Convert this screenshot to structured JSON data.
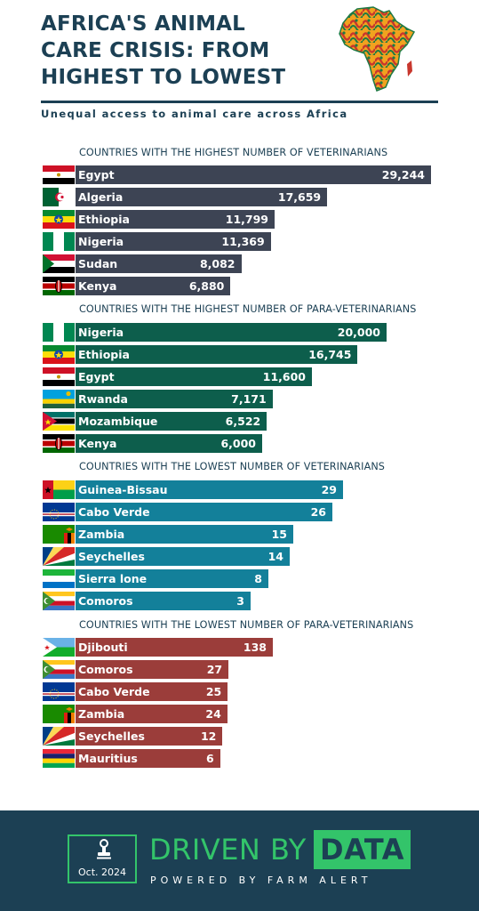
{
  "title_lines": [
    "AFRICA'S ANIMAL",
    "CARE CRISIS: FROM",
    "HIGHEST TO LOWEST"
  ],
  "subtitle": "Unequal access to animal care across Africa",
  "chart_data": [
    {
      "type": "bar",
      "title": "COUNTRIES WITH THE HIGHEST NUMBER OF VETERINARIANS",
      "color": "#3d4454",
      "categories": [
        "Egypt",
        "Algeria",
        "Ethiopia",
        "Nigeria",
        "Sudan",
        "Kenya"
      ],
      "values": [
        29244,
        17659,
        11799,
        11369,
        8082,
        6880
      ],
      "labels": [
        "29,244",
        "17,659",
        "11,799",
        "11,369",
        "8,082",
        "6,880"
      ],
      "flags": [
        "egypt-flag-icon",
        "algeria-flag-icon",
        "ethiopia-flag-icon",
        "nigeria-flag-icon",
        "sudan-flag-icon",
        "kenya-flag-icon"
      ]
    },
    {
      "type": "bar",
      "title": "COUNTRIES WITH THE HIGHEST NUMBER OF PARA-VETERINARIANS",
      "color": "#0d5e4c",
      "categories": [
        "Nigeria",
        "Ethiopia",
        "Egypt",
        "Rwanda",
        "Mozambique",
        "Kenya"
      ],
      "values": [
        20000,
        16745,
        11600,
        7171,
        6522,
        6000
      ],
      "labels": [
        "20,000",
        "16,745",
        "11,600",
        "7,171",
        "6,522",
        "6,000"
      ],
      "flags": [
        "nigeria-flag-icon",
        "ethiopia-flag-icon",
        "egypt-flag-icon",
        "rwanda-flag-icon",
        "mozambique-flag-icon",
        "kenya-flag-icon"
      ]
    },
    {
      "type": "bar",
      "title": "COUNTRIES WITH THE LOWEST NUMBER OF VETERINARIANS",
      "color": "#13809a",
      "categories": [
        "Guinea-Bissau",
        "Cabo Verde",
        "Zambia",
        "Seychelles",
        "Sierra lone",
        "Comoros"
      ],
      "values": [
        29,
        26,
        15,
        14,
        8,
        3
      ],
      "labels": [
        "29",
        "26",
        "15",
        "14",
        "8",
        "3"
      ],
      "flags": [
        "guinea-bissau-flag-icon",
        "cabo-verde-flag-icon",
        "zambia-flag-icon",
        "seychelles-flag-icon",
        "sierra-leone-flag-icon",
        "comoros-flag-icon"
      ]
    },
    {
      "type": "bar",
      "title": "COUNTRIES WITH THE LOWEST NUMBER OF PARA-VETERINARIANS",
      "color": "#9b3d3a",
      "categories": [
        "Djibouti",
        "Comoros",
        "Cabo Verde",
        "Zambia",
        "Seychelles",
        "Mauritius"
      ],
      "values": [
        138,
        27,
        25,
        24,
        12,
        6
      ],
      "labels": [
        "138",
        "27",
        "25",
        "24",
        "12",
        "6"
      ],
      "flags": [
        "djibouti-flag-icon",
        "comoros-flag-icon",
        "cabo-verde-flag-icon",
        "zambia-flag-icon",
        "seychelles-flag-icon",
        "mauritius-flag-icon"
      ]
    }
  ],
  "footer": {
    "date": "Oct. 2024",
    "brand_left": "DRIVEN BY",
    "brand_right": "DATA",
    "powered_by": "POWERED BY FARM ALERT",
    "icon": "stamp-icon",
    "accent": "#33c46a",
    "background": "#1c4054"
  },
  "logo_icon": "africa-map-icon"
}
